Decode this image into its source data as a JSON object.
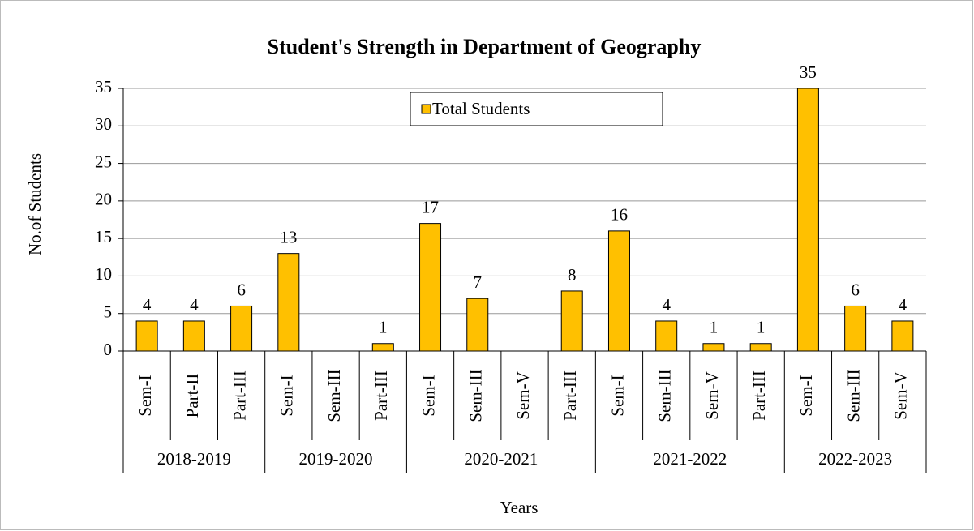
{
  "chart_data": {
    "type": "bar",
    "title": "Student's Strength in Department of Geography",
    "x_label": "Years",
    "y_label": "No.of Students",
    "series": [
      {
        "name": "Total Students",
        "color": "#ffc000"
      }
    ],
    "groups": [
      {
        "name": "2018-2019",
        "categories": [
          "Sem-I",
          "Part-II",
          "Part-III"
        ],
        "values": [
          4,
          4,
          6
        ]
      },
      {
        "name": "2019-2020",
        "categories": [
          "Sem-I",
          "Sem-III",
          "Part-III"
        ],
        "values": [
          13,
          null,
          1
        ]
      },
      {
        "name": "2020-2021",
        "categories": [
          "Sem-I",
          "Sem-III",
          "Sem-V",
          "Part-III"
        ],
        "values": [
          17,
          7,
          null,
          8
        ]
      },
      {
        "name": "2021-2022",
        "categories": [
          "Sem-I",
          "Sem-III",
          "Sem-V",
          "Part-III"
        ],
        "values": [
          16,
          4,
          1,
          1
        ]
      },
      {
        "name": "2022-2023",
        "categories": [
          "Sem-I",
          "Sem-III",
          "Sem-V"
        ],
        "values": [
          35,
          6,
          4
        ]
      }
    ],
    "ylim": [
      0,
      35
    ],
    "yticks": [
      0,
      5,
      10,
      15,
      20,
      25,
      30,
      35
    ],
    "grid": true,
    "legend": "top"
  }
}
